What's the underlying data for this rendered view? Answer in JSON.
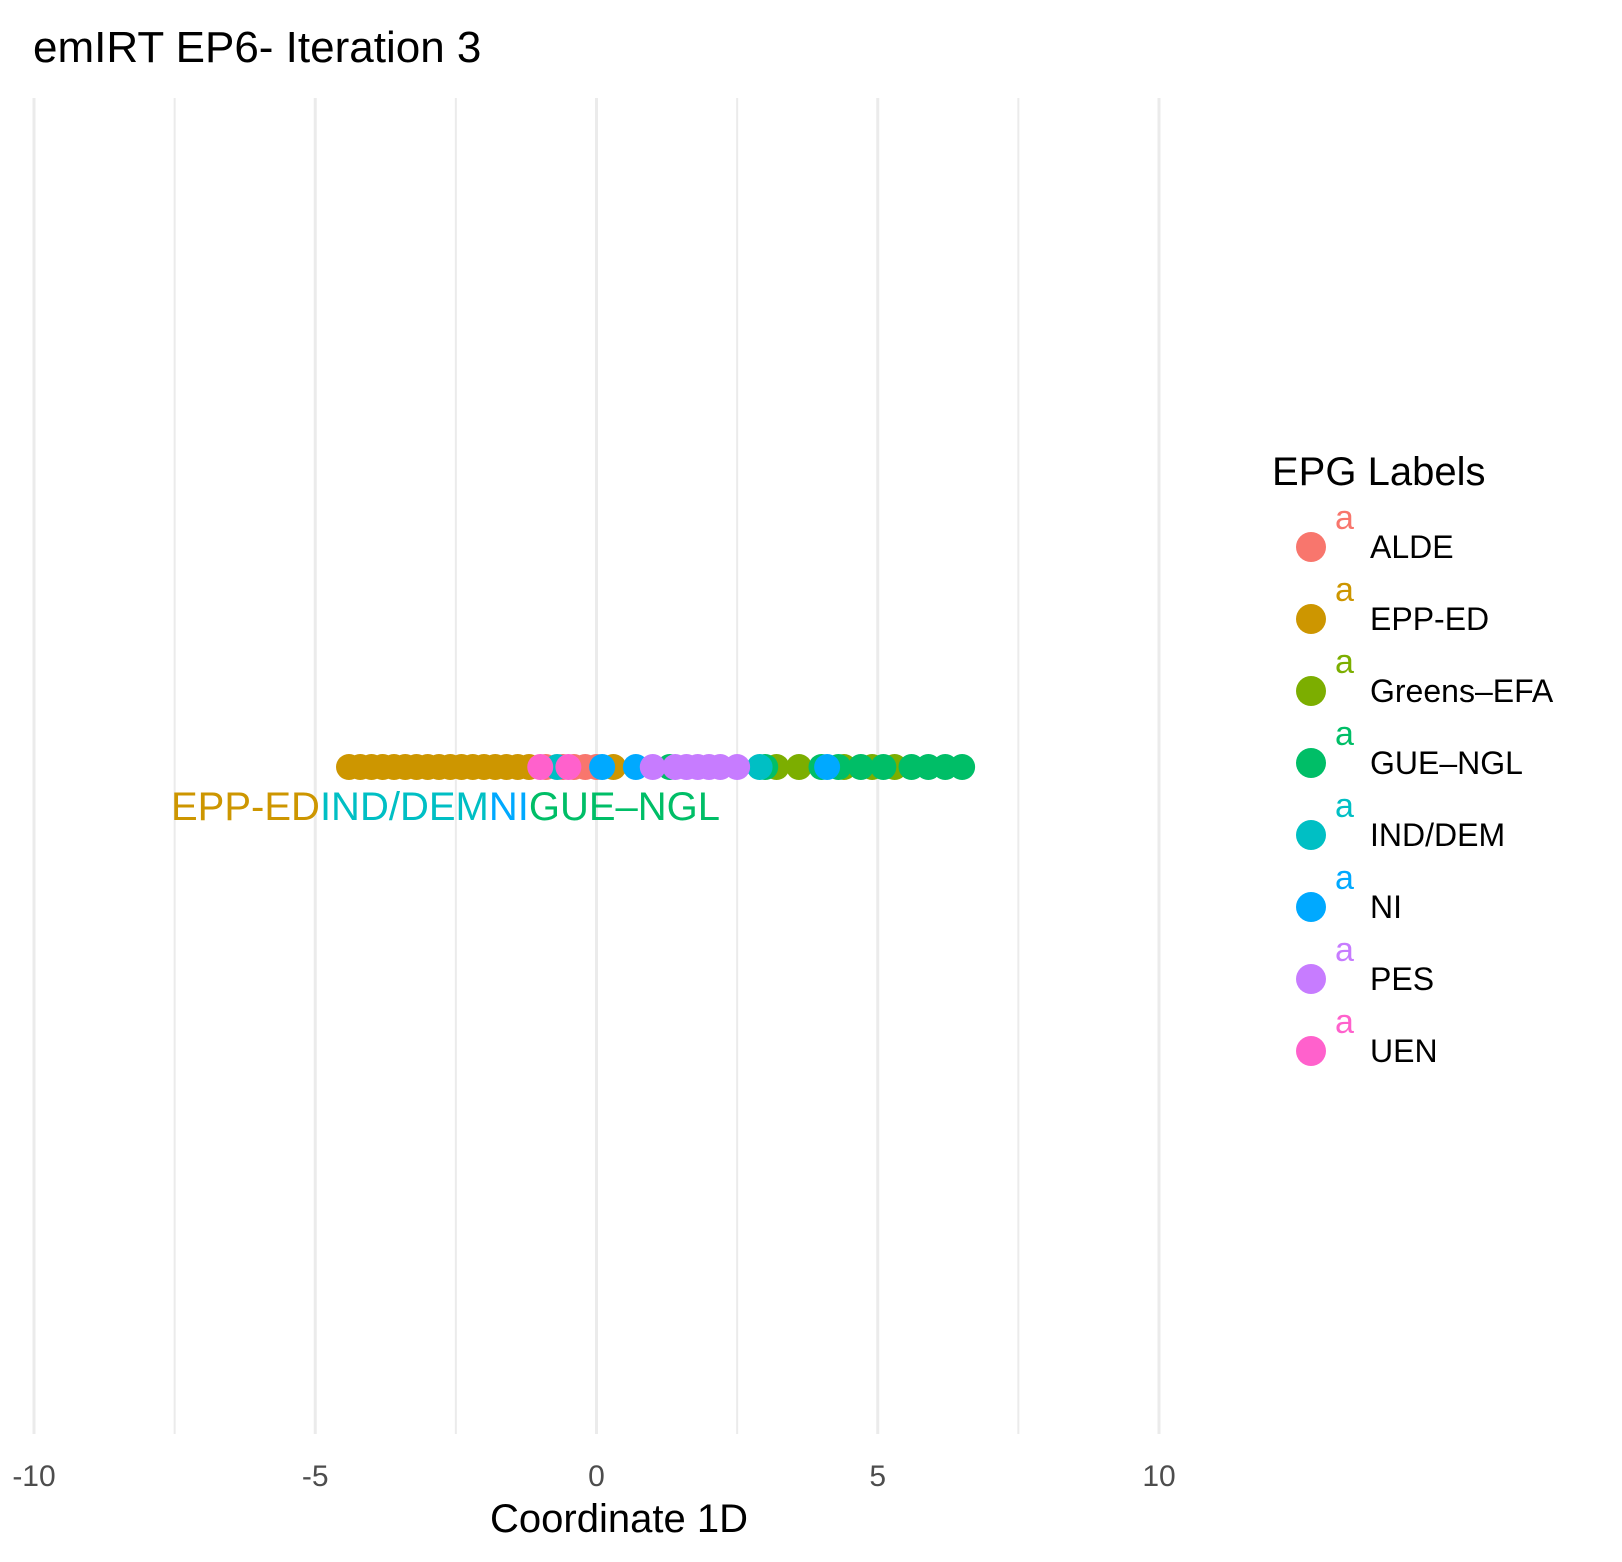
{
  "chart_data": {
    "type": "scatter",
    "title": "emIRT EP6- Iteration 3",
    "xlabel": "Coordinate 1D",
    "ylabel": "",
    "xlim": [
      -10,
      10
    ],
    "x_ticks": [
      -10,
      -5,
      0,
      5,
      10
    ],
    "x_tick_labels": [
      "-10",
      "-5",
      "0",
      "5",
      "10"
    ],
    "grid": true,
    "legend": {
      "title": "EPG Labels",
      "position": "right",
      "key_letter": "a"
    },
    "series": [
      {
        "name": "ALDE",
        "color": "#F8766D",
        "x": [
          -0.9,
          -0.6,
          -0.4,
          -0.2,
          0.0
        ]
      },
      {
        "name": "EPP-ED",
        "color": "#CD9600",
        "x": [
          -4.4,
          -4.2,
          -4.0,
          -3.8,
          -3.6,
          -3.4,
          -3.2,
          -3.0,
          -2.8,
          -2.6,
          -2.4,
          -2.2,
          -2.0,
          -1.8,
          -1.6,
          -1.4,
          -1.2,
          0.3
        ]
      },
      {
        "name": "Greens–EFA",
        "color": "#7CAE00",
        "x": [
          3.2,
          3.6,
          4.4,
          4.9,
          5.3
        ]
      },
      {
        "name": "GUE–NGL",
        "color": "#00BE67",
        "x": [
          1.3,
          3.0,
          4.0,
          4.3,
          4.7,
          5.1,
          5.6,
          5.9,
          6.2,
          6.5
        ]
      },
      {
        "name": "IND/DEM",
        "color": "#00BFC4",
        "x": [
          -0.7,
          2.9
        ]
      },
      {
        "name": "NI",
        "color": "#00A9FF",
        "x": [
          0.1,
          0.7,
          4.1
        ]
      },
      {
        "name": "PES",
        "color": "#C77CFF",
        "x": [
          1.0,
          1.4,
          1.6,
          1.8,
          2.0,
          2.2,
          2.5
        ]
      },
      {
        "name": "UEN",
        "color": "#FF61CC",
        "x": [
          -1.0,
          -0.5
        ]
      }
    ],
    "annotations": [
      {
        "text": "EPP-ED",
        "color": "#CD9600"
      },
      {
        "text": "IND/DEM",
        "color": "#00BFC4"
      },
      {
        "text": "NI",
        "color": "#00A9FF"
      },
      {
        "text": "GUE–NGL",
        "color": "#00BE67"
      }
    ]
  }
}
